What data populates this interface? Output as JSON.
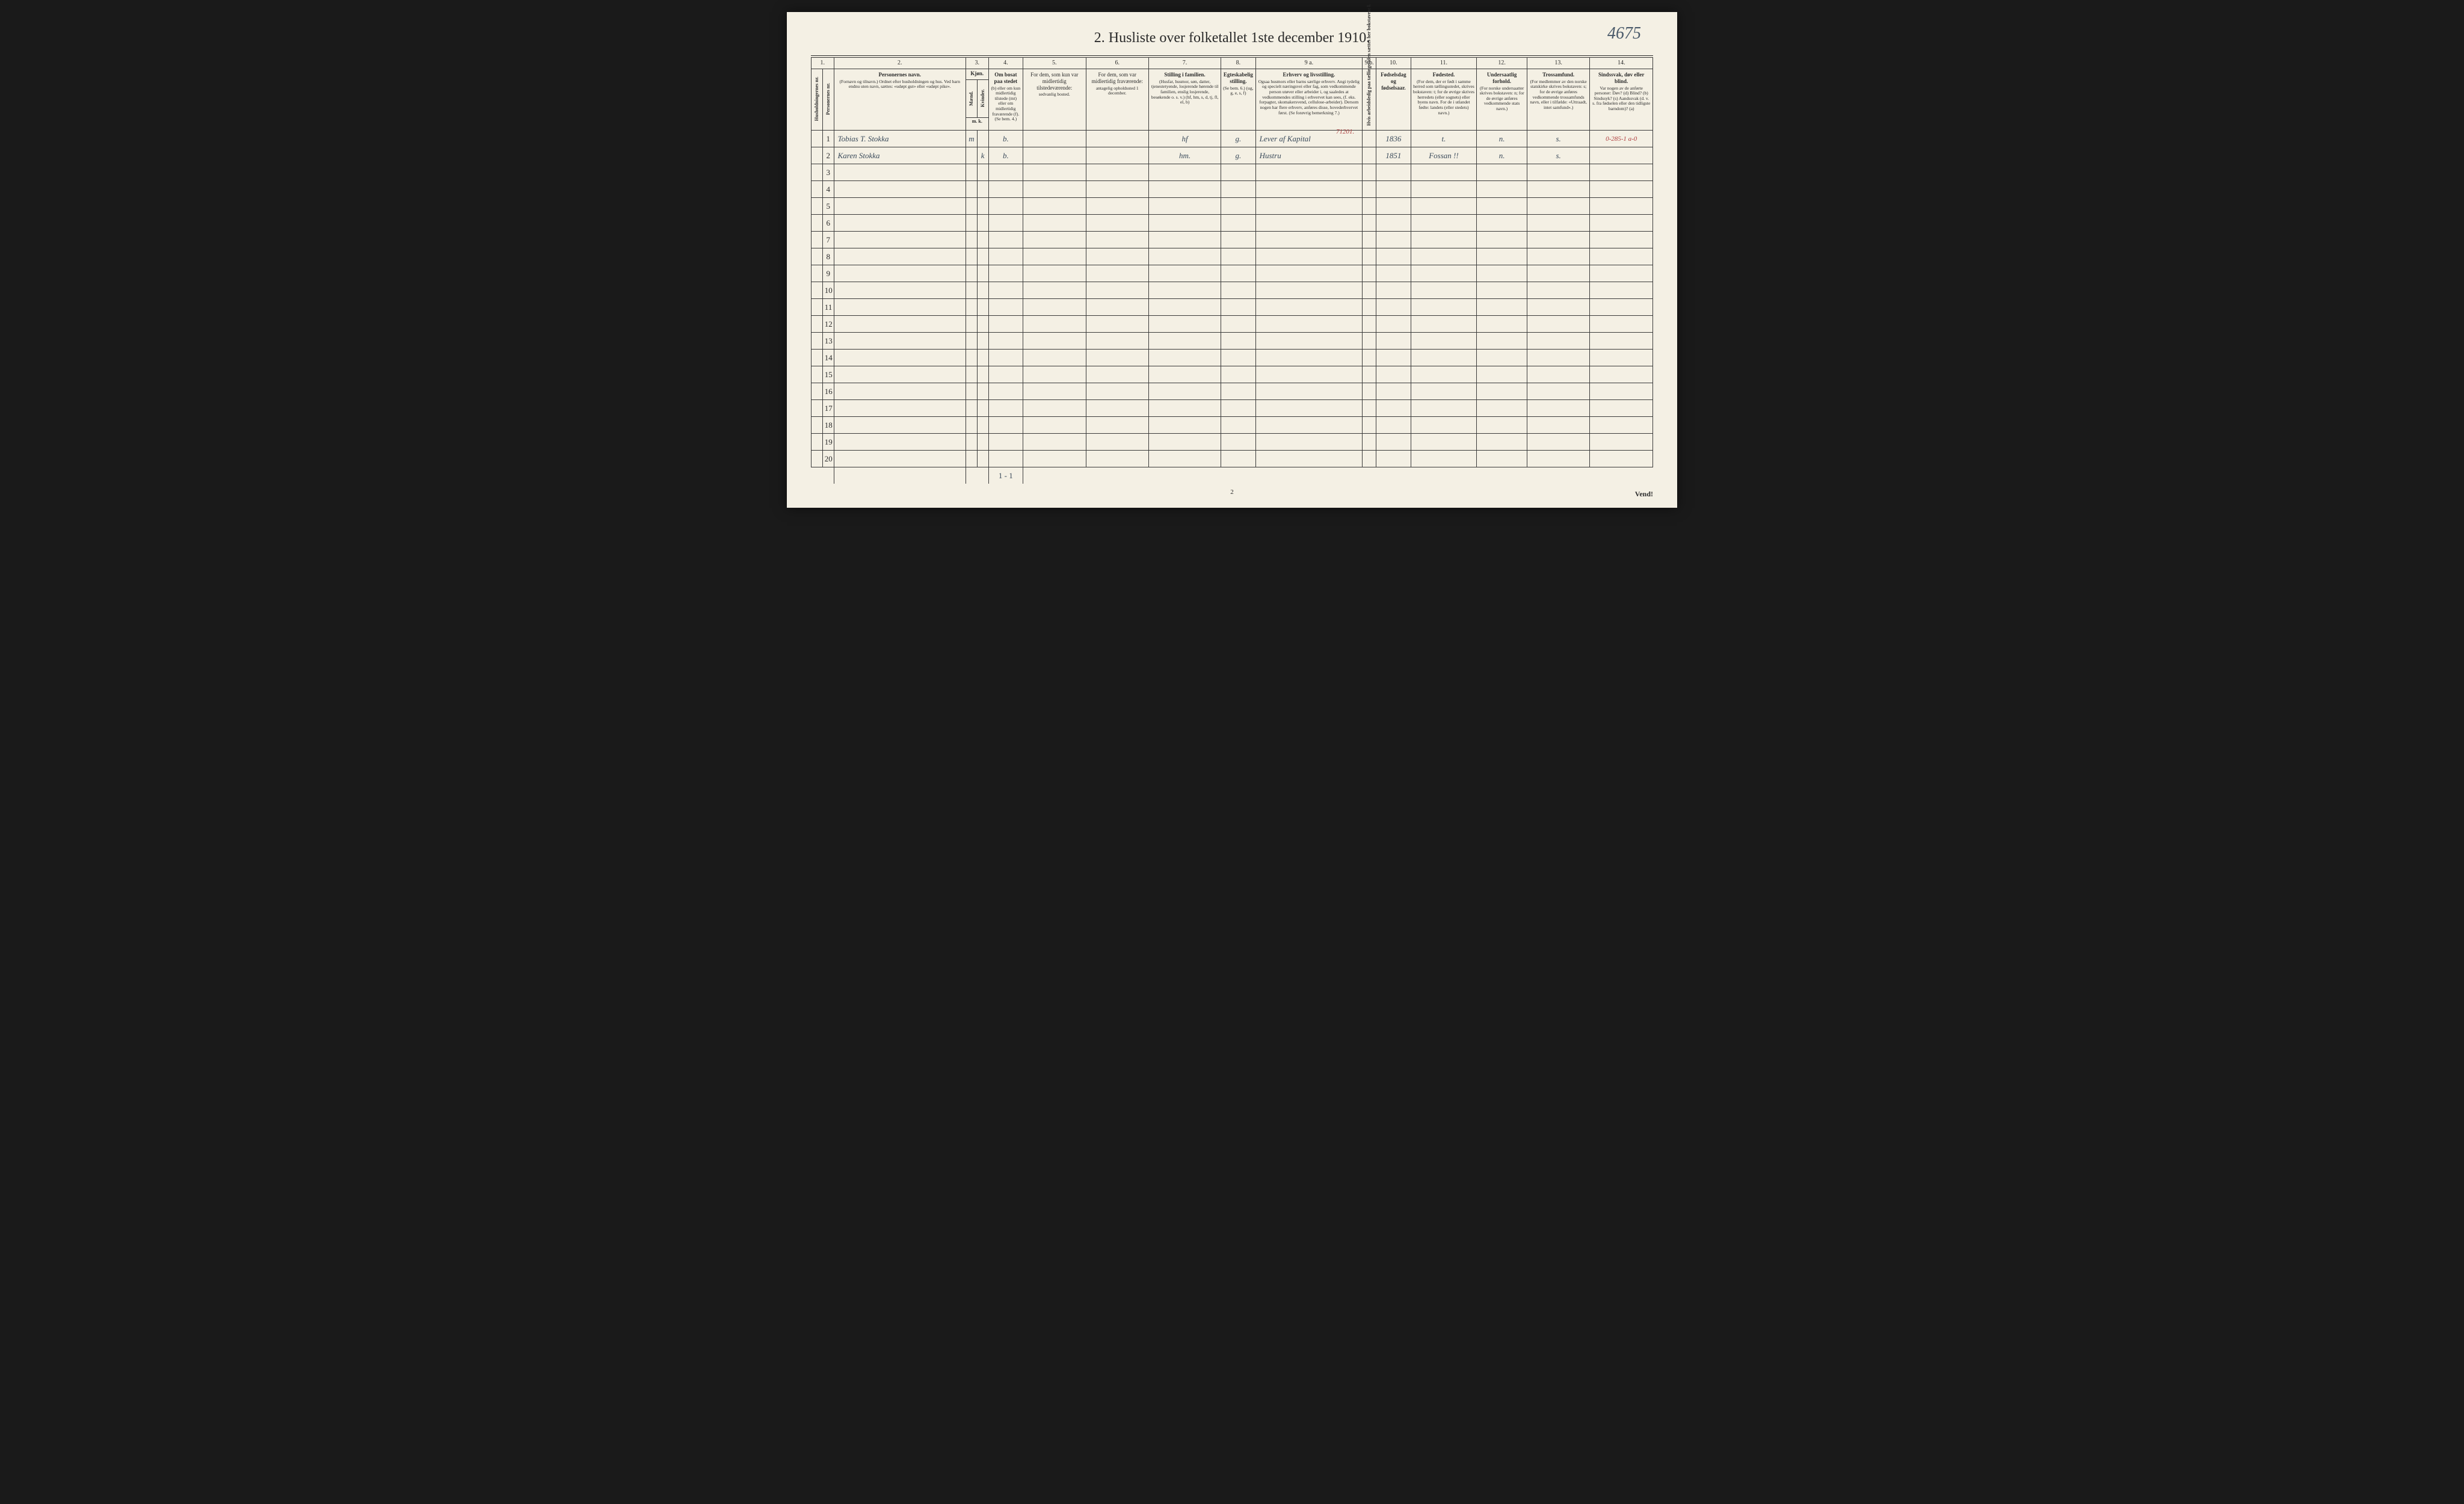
{
  "handwritten_top_right": "4675",
  "title": "2.  Husliste over folketallet 1ste december 1910.",
  "col_numbers": [
    "1.",
    "2.",
    "3.",
    "4.",
    "5.",
    "6.",
    "7.",
    "8.",
    "9 a.",
    "9 b.",
    "10.",
    "11.",
    "12.",
    "13.",
    "14."
  ],
  "headers": {
    "c1a": "Husholdningernes nr.",
    "c1b": "Personernes nr.",
    "c2_main": "Personernes navn.",
    "c2_sub": "(Fornavn og tilnavn.)\nOrdnet efter husholdningen og hus.\nVed barn endnu uten navn, sættes: «udøpt gut» eller «udøpt pike».",
    "c3_main": "Kjøn.",
    "c3_sub1": "Mænd.",
    "c3_sub2": "Kvinder.",
    "c3_mk": "m.   k.",
    "c4_main": "Om bosat paa stedet",
    "c4_sub": "(b) eller om kun midlertidig tilstede (mt) eller om midlertidig fraværende (f).\n(Se bem. 4.)",
    "c5_main": "For dem, som kun var midlertidig tilstedeværende:",
    "c5_sub": "sedvanlig bosted.",
    "c6_main": "For dem, som var midlertidig fraværende:",
    "c6_sub": "antagelig opholdssted 1 december.",
    "c7_main": "Stilling i familien.",
    "c7_sub": "(Husfar, husmor, søn, datter, tjenestetyende, losjerende hørende til familien, enslig losjerende, besøkende o. s. v.)\n(hf, hm, s, d, tj, fl, el, b)",
    "c8_main": "Egteskabelig stilling.",
    "c8_sub": "(Se bem. 6.)\n(ug, g, e, s, f)",
    "c9a_main": "Erhverv og livsstilling.",
    "c9a_sub": "Ogsaa husmors eller barns særlige erhverv. Angi tydelig og specielt næringsvei eller fag, som vedkommende person utøver eller arbeider i, og saaledes at vedkommendes stilling i erhvervet kan sees, (f. eks. forpagter, skomakersvend, cellulose-arbeider). Dersom nogen har flere erhverv, anføres disse, hovederhvervet først.\n(Se forøvrig bemerkning 7.)",
    "c9b": "Hvis arbeidsledig paa tællingetiden sættes her bokstaven: l.",
    "c10_main": "Fødselsdag og fødselsaar.",
    "c11_main": "Fødested.",
    "c11_sub": "(For dem, der er født i samme herred som tællingsstedet, skrives bokstaven: t; for de øvrige skrives herredets (eller sognets) eller byens navn. For de i utlandet fødte: landets (eller stedets) navn.)",
    "c12_main": "Undersaatlig forhold.",
    "c12_sub": "(For norske undersaatter skrives bokstaven: n; for de øvrige anføres vedkommende stats navn.)",
    "c13_main": "Trossamfund.",
    "c13_sub": "(For medlemmer av den norske statskirke skrives bokstaven: s; for de øvrige anføres vedkommende trossamfunds navn, eller i tilfælde: «Uttraadt, intet samfund».)",
    "c14_main": "Sindssvak, døv eller blind.",
    "c14_sub": "Var nogen av de anførte personer:\nDøv?  (d)\nBlind?  (b)\nSindssyk?  (s)\nAandssvak (d. v. s. fra fødselen eller den tidligste barndom)?  (a)"
  },
  "rows": [
    {
      "n": "1",
      "name": "Tobias T. Stokka",
      "sex_m": "m",
      "sex_k": "",
      "c4": "b.",
      "c7": "hf",
      "c8": "g.",
      "c9a": "Lever af Kapital",
      "c9a_note": "71201.",
      "c10": "1836",
      "c11": "t.",
      "c12": "n.",
      "c13": "s.",
      "c14_note": "0-285-1  a-0"
    },
    {
      "n": "2",
      "name": "Karen Stokka",
      "sex_m": "",
      "sex_k": "k",
      "c4": "b.",
      "c7": "hm.",
      "c8": "g.",
      "c9a": "Hustru",
      "c10": "1851",
      "c11": "Fossan !!",
      "c12": "n.",
      "c13": "s."
    },
    {
      "n": "3"
    },
    {
      "n": "4"
    },
    {
      "n": "5"
    },
    {
      "n": "6"
    },
    {
      "n": "7"
    },
    {
      "n": "8"
    },
    {
      "n": "9"
    },
    {
      "n": "10"
    },
    {
      "n": "11"
    },
    {
      "n": "12"
    },
    {
      "n": "13"
    },
    {
      "n": "14"
    },
    {
      "n": "15"
    },
    {
      "n": "16"
    },
    {
      "n": "17"
    },
    {
      "n": "18"
    },
    {
      "n": "19"
    },
    {
      "n": "20"
    }
  ],
  "bottom_tally": "1 - 1",
  "page_number": "2",
  "vend": "Vend!",
  "colwidths": {
    "c1a": 18,
    "c1b": 18,
    "c2": 210,
    "c3m": 18,
    "c3k": 18,
    "c4": 55,
    "c5": 100,
    "c6": 100,
    "c7": 115,
    "c8": 55,
    "c9a": 170,
    "c9b": 22,
    "c10": 55,
    "c11": 105,
    "c12": 80,
    "c13": 100,
    "c14": 100
  }
}
